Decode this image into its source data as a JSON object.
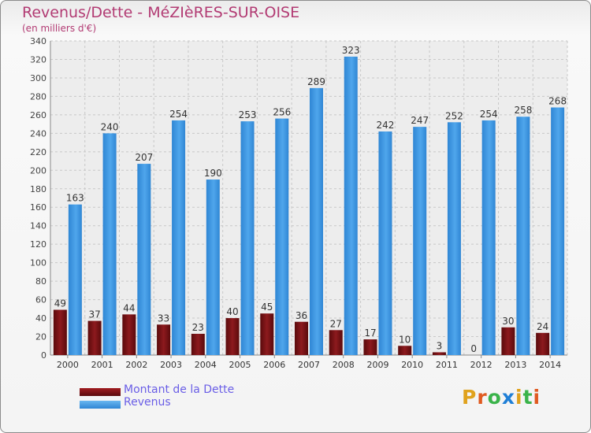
{
  "title": "Revenus/Dette - MéZIèRES-SUR-OISE",
  "subtitle": "(en milliers d'€)",
  "legend": [
    {
      "label": "Montant de la Dette",
      "color": "#7a0f13"
    },
    {
      "label": "Revenus",
      "color": "#3f97e1"
    }
  ],
  "logo": {
    "text": "Proxiti",
    "colors": [
      "#e0a21d",
      "#e05a20",
      "#3ab34a",
      "#1f7fd6",
      "#e0a21d",
      "#3ab34a",
      "#e05a20"
    ]
  },
  "chart_data": {
    "type": "bar",
    "categories": [
      "2000",
      "2001",
      "2002",
      "2003",
      "2004",
      "2005",
      "2006",
      "2007",
      "2008",
      "2009",
      "2010",
      "2011",
      "2012",
      "2013",
      "2014"
    ],
    "series": [
      {
        "name": "Montant de la Dette",
        "color": "#7a0f13",
        "values": [
          49,
          37,
          44,
          33,
          23,
          40,
          45,
          36,
          27,
          17,
          10,
          3,
          0,
          30,
          24
        ]
      },
      {
        "name": "Revenus",
        "color": "#3f97e1",
        "values": [
          163,
          240,
          207,
          254,
          190,
          253,
          256,
          289,
          323,
          242,
          247,
          252,
          254,
          258,
          268
        ]
      }
    ],
    "ylim": [
      0,
      340
    ],
    "yticks": [
      0,
      20,
      40,
      60,
      80,
      100,
      120,
      140,
      160,
      180,
      200,
      220,
      240,
      260,
      280,
      300,
      320,
      340
    ],
    "grid": true,
    "legend_position": "bottom-left"
  }
}
